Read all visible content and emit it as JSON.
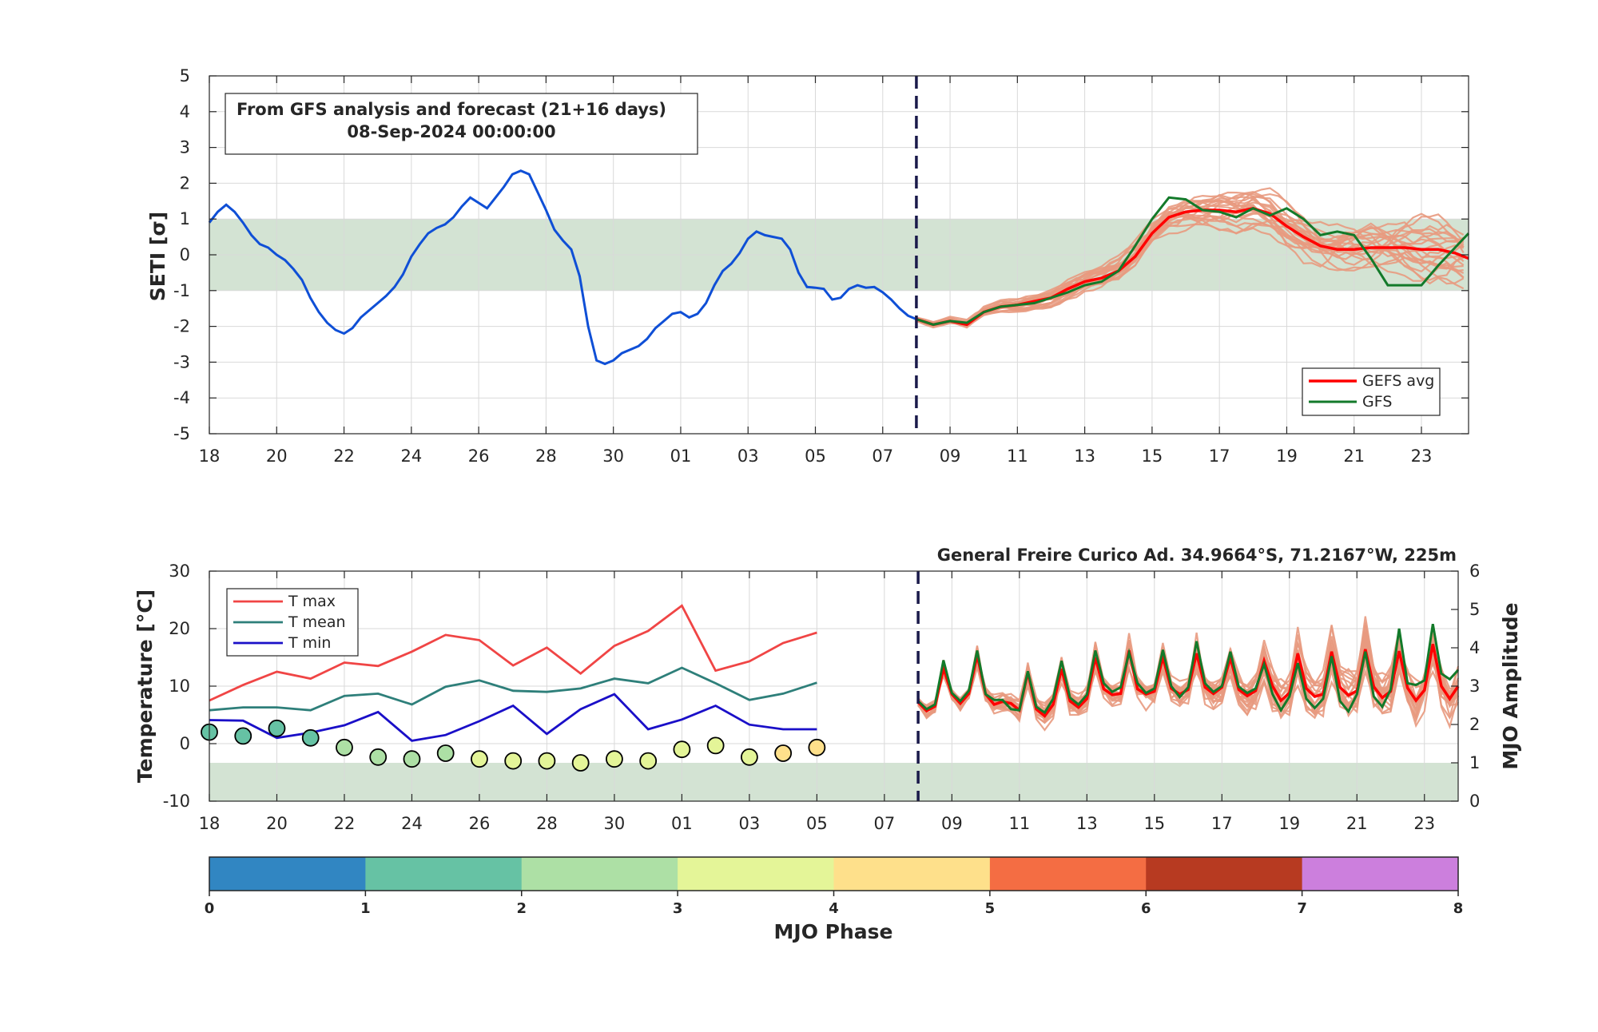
{
  "colors": {
    "band": "#d3e3d3",
    "analysis": "#0f4fd6",
    "gefs_avg": "#ff0000",
    "gfs": "#137a2a",
    "members": "#e89a80",
    "tmax": "#f04545",
    "tmean": "#2e7f7a",
    "tmin": "#1a0fc8",
    "init_line": "#1a1a4a"
  },
  "x_tick_labels": [
    "18",
    "20",
    "22",
    "24",
    "26",
    "28",
    "30",
    "01",
    "03",
    "05",
    "07",
    "09",
    "11",
    "13",
    "15",
    "17",
    "19",
    "21",
    "23"
  ],
  "chart_data": [
    {
      "type": "line",
      "title": "",
      "ylabel": "SETI [σ]",
      "ylim": [
        -5,
        5
      ],
      "yticks": [
        -5,
        -4,
        -3,
        -2,
        -1,
        0,
        1,
        2,
        3,
        4,
        5
      ],
      "x_units": "days since 18-Aug-2024 00:00",
      "xlim": [
        0,
        37.4
      ],
      "init_day": 21,
      "normal_band": [
        -1,
        1
      ],
      "info_box": {
        "line1": "From GFS analysis and forecast (21+16 days)",
        "line2": "08-Sep-2024 00:00:00"
      },
      "legend": {
        "placement": "bottom-right",
        "entries": [
          "GEFS avg",
          "GFS"
        ]
      },
      "analysis": {
        "x": [
          0,
          0.25,
          0.5,
          0.75,
          1,
          1.25,
          1.5,
          1.75,
          2,
          2.25,
          2.5,
          2.75,
          3,
          3.25,
          3.5,
          3.75,
          4,
          4.25,
          4.5,
          4.75,
          5,
          5.25,
          5.5,
          5.75,
          6,
          6.25,
          6.5,
          6.75,
          7,
          7.25,
          7.5,
          7.75,
          8,
          8.25,
          8.5,
          8.75,
          9,
          9.25,
          9.5,
          9.75,
          10,
          10.25,
          10.5,
          10.75,
          11,
          11.25,
          11.5,
          11.75,
          12,
          12.25,
          12.5,
          12.75,
          13,
          13.25,
          13.5,
          13.75,
          14,
          14.25,
          14.5,
          14.75,
          15,
          15.25,
          15.5,
          15.75,
          16,
          16.25,
          16.5,
          16.75,
          17,
          17.25,
          17.5,
          17.75,
          18,
          18.25,
          18.5,
          18.75,
          19,
          19.25,
          19.5,
          19.75,
          20,
          20.25,
          20.5,
          20.75,
          21
        ],
        "y": [
          0.9,
          1.2,
          1.4,
          1.2,
          0.9,
          0.55,
          0.3,
          0.2,
          0.0,
          -0.15,
          -0.4,
          -0.7,
          -1.2,
          -1.6,
          -1.9,
          -2.1,
          -2.2,
          -2.05,
          -1.75,
          -1.55,
          -1.35,
          -1.15,
          -0.9,
          -0.55,
          -0.05,
          0.3,
          0.6,
          0.75,
          0.85,
          1.05,
          1.35,
          1.6,
          1.45,
          1.3,
          1.6,
          1.9,
          2.25,
          2.35,
          2.25,
          1.75,
          1.25,
          0.7,
          0.4,
          0.15,
          -0.6,
          -2.0,
          -2.95,
          -3.05,
          -2.95,
          -2.75,
          -2.65,
          -2.55,
          -2.35,
          -2.05,
          -1.85,
          -1.65,
          -1.6,
          -1.75,
          -1.65,
          -1.35,
          -0.85,
          -0.45,
          -0.25,
          0.05,
          0.45,
          0.65,
          0.55,
          0.5,
          0.45,
          0.15,
          -0.5,
          -0.9,
          -0.92,
          -0.95,
          -1.25,
          -1.2,
          -0.95,
          -0.85,
          -0.92,
          -0.9,
          -1.05,
          -1.25,
          -1.5,
          -1.7,
          -1.8
        ]
      },
      "gefs_avg": {
        "x": [
          21,
          21.5,
          22,
          22.5,
          23,
          23.5,
          24,
          24.5,
          25,
          25.5,
          26,
          26.5,
          27,
          27.5,
          28,
          28.5,
          29,
          29.5,
          30,
          30.5,
          31,
          31.5,
          32,
          32.5,
          33,
          33.5,
          34,
          34.5,
          35,
          35.5,
          36,
          36.5,
          37,
          37.4
        ],
        "y": [
          -1.8,
          -1.95,
          -1.85,
          -1.95,
          -1.6,
          -1.45,
          -1.4,
          -1.3,
          -1.2,
          -0.95,
          -0.75,
          -0.65,
          -0.45,
          -0.05,
          0.6,
          1.05,
          1.2,
          1.25,
          1.25,
          1.2,
          1.3,
          1.15,
          0.8,
          0.5,
          0.25,
          0.15,
          0.15,
          0.2,
          0.2,
          0.2,
          0.15,
          0.15,
          0.05,
          -0.1
        ]
      },
      "gfs": {
        "x": [
          21,
          21.5,
          22,
          22.5,
          23,
          23.5,
          24,
          24.5,
          25,
          25.5,
          26,
          26.5,
          27,
          27.5,
          28,
          28.5,
          29,
          29.5,
          30,
          30.5,
          31,
          31.5,
          32,
          32.5,
          33,
          33.5,
          34,
          34.5,
          35,
          35.5,
          36,
          36.5,
          37,
          37.4
        ],
        "y": [
          -1.8,
          -1.95,
          -1.85,
          -1.9,
          -1.6,
          -1.45,
          -1.4,
          -1.35,
          -1.2,
          -1.05,
          -0.85,
          -0.75,
          -0.45,
          0.25,
          1.0,
          1.6,
          1.55,
          1.25,
          1.2,
          1.05,
          1.3,
          1.1,
          1.3,
          1.0,
          0.55,
          0.65,
          0.55,
          -0.1,
          -0.85,
          -0.85,
          -0.85,
          -0.3,
          0.2,
          0.6
        ]
      }
    },
    {
      "type": "line",
      "title": "General Freire Curico Ad. 34.9664°S, 71.2167°W, 225m",
      "ylabel": "Temperature [°C]",
      "ylim": [
        -10,
        30
      ],
      "yticks": [
        -10,
        0,
        10,
        20,
        30
      ],
      "y2label": "MJO Amplitude",
      "y2lim": [
        0,
        6
      ],
      "y2ticks": [
        0,
        1,
        2,
        3,
        4,
        5,
        6
      ],
      "x_units": "days since 18-Aug-2024 00:00",
      "xlim": [
        0,
        37
      ],
      "init_day": 21,
      "mjo_weak_band_amplitude": [
        0,
        1
      ],
      "legend": {
        "placement": "top-left",
        "entries": [
          "T max",
          "T mean",
          "T min"
        ]
      },
      "daily_x": [
        0,
        1,
        2,
        3,
        4,
        5,
        6,
        7,
        8,
        9,
        10,
        11,
        12,
        13,
        14,
        15,
        16,
        17,
        18
      ],
      "tmax": [
        7.5,
        10.2,
        12.5,
        11.3,
        14.1,
        13.5,
        16,
        18.9,
        18,
        13.6,
        16.7,
        12.2,
        17,
        19.6,
        24,
        12.7,
        14.3,
        17.5,
        19.3
      ],
      "tmean": [
        5.8,
        6.3,
        6.3,
        5.8,
        8.3,
        8.7,
        6.8,
        9.9,
        11,
        9.2,
        9,
        9.6,
        11.3,
        10.5,
        13.2,
        10.5,
        7.6,
        8.7,
        10.6
      ],
      "tmin": [
        4.1,
        4,
        1,
        1.9,
        3.2,
        5.5,
        0.5,
        1.5,
        3.9,
        6.6,
        1.7,
        6,
        8.6,
        2.5,
        4.2,
        6.6,
        3.3,
        2.5,
        2.5
      ],
      "mjo": {
        "amplitude": [
          1.8,
          1.7,
          1.9,
          1.65,
          1.4,
          1.15,
          1.1,
          1.25,
          1.1,
          1.05,
          1.05,
          1.0,
          1.1,
          1.05,
          1.35,
          1.45,
          1.15,
          1.25,
          1.4
        ],
        "phase": [
          1.6,
          1.3,
          1.6,
          1.4,
          2.3,
          2.3,
          2.3,
          2.4,
          3.3,
          3.3,
          3.3,
          3.3,
          3.4,
          3.4,
          3.4,
          3.3,
          3.5,
          4.1,
          4.1
        ]
      },
      "forecast_gefs_avg": {
        "x": [
          21,
          21.25,
          21.5,
          21.75,
          22,
          22.25,
          22.5,
          22.75,
          23,
          23.25,
          23.5,
          23.75,
          24,
          24.25,
          24.5,
          24.75,
          25,
          25.25,
          25.5,
          25.75,
          26,
          26.25,
          26.5,
          26.75,
          27,
          27.25,
          27.5,
          27.75,
          28,
          28.25,
          28.5,
          28.75,
          29,
          29.25,
          29.5,
          29.75,
          30,
          30.25,
          30.5,
          30.75,
          31,
          31.25,
          31.5,
          31.75,
          32,
          32.25,
          32.5,
          32.75,
          33,
          33.25,
          33.5,
          33.75,
          34,
          34.25,
          34.5,
          34.75,
          35,
          35.25,
          35.5,
          35.75,
          36,
          36.25,
          36.5,
          36.75,
          37
        ],
        "y": [
          7.2,
          5.7,
          6.5,
          13.1,
          8.6,
          7.0,
          8.7,
          15.4,
          8.6,
          6.8,
          7.3,
          7.0,
          5.8,
          12.4,
          6.0,
          4.8,
          6.8,
          13.0,
          7.4,
          6.3,
          7.8,
          15.0,
          9.5,
          8.5,
          8.7,
          16.2,
          9.5,
          8.6,
          9.1,
          15.0,
          9.6,
          8.6,
          9.4,
          15.7,
          9.8,
          8.7,
          9.8,
          14.9,
          9.4,
          8.3,
          9.2,
          14.4,
          10.0,
          7.5,
          8.8,
          15.7,
          9.6,
          8.2,
          8.6,
          16.0,
          9.8,
          8.4,
          9.2,
          16.4,
          9.9,
          8.0,
          9.1,
          16.1,
          9.7,
          7.5,
          9.3,
          17.3,
          10.0,
          7.8,
          10.0
        ]
      },
      "forecast_gfs": {
        "x": [
          21,
          21.25,
          21.5,
          21.75,
          22,
          22.25,
          22.5,
          22.75,
          23,
          23.25,
          23.5,
          23.75,
          24,
          24.25,
          24.5,
          24.75,
          25,
          25.25,
          25.5,
          25.75,
          26,
          26.25,
          26.5,
          26.75,
          27,
          27.25,
          27.5,
          27.75,
          28,
          28.25,
          28.5,
          28.75,
          29,
          29.25,
          29.5,
          29.75,
          30,
          30.25,
          30.5,
          30.75,
          31,
          31.25,
          31.5,
          31.75,
          32,
          32.25,
          32.5,
          32.75,
          33,
          33.25,
          33.5,
          33.75,
          34,
          34.25,
          34.5,
          34.75,
          35,
          35.25,
          35.5,
          35.75,
          36,
          36.25,
          36.5,
          36.75,
          37
        ],
        "y": [
          7.4,
          6.0,
          6.8,
          14.5,
          8.8,
          7.4,
          9.2,
          16.2,
          8.6,
          7.6,
          7.6,
          6.0,
          5.8,
          12.6,
          6.4,
          5.4,
          7.8,
          14.4,
          8.0,
          6.8,
          8.5,
          16.2,
          10.5,
          9.0,
          9.8,
          15.8,
          10.5,
          8.8,
          9.6,
          16.3,
          10.0,
          8.1,
          9.8,
          17.8,
          10.5,
          9.0,
          10.0,
          16.0,
          9.9,
          8.8,
          9.6,
          13.8,
          8.6,
          5.8,
          8.2,
          14.0,
          7.8,
          6.2,
          7.8,
          15.2,
          7.4,
          5.6,
          8.6,
          16.0,
          8.2,
          6.4,
          9.4,
          20.0,
          10.5,
          10.2,
          11.0,
          20.8,
          12.2,
          11.2,
          12.8
        ]
      }
    }
  ],
  "mjo_colorbar": {
    "label": "MJO Phase",
    "ticks": [
      "0",
      "1",
      "2",
      "3",
      "4",
      "5",
      "6",
      "7",
      "8"
    ],
    "colors": [
      "#3186c2",
      "#66c2a4",
      "#ade0a5",
      "#e4f598",
      "#fee08b",
      "#f46d43",
      "#b73a21",
      "#cc7fdd"
    ]
  }
}
